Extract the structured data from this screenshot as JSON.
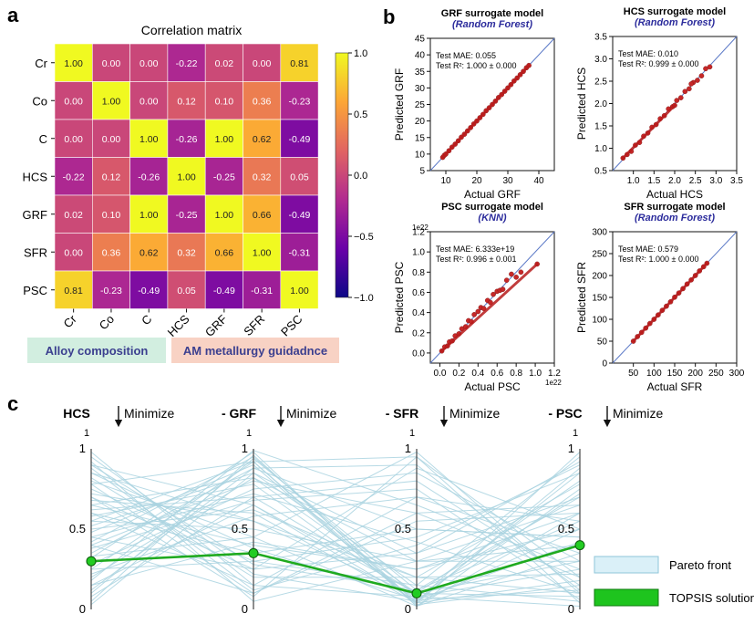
{
  "panel_letters": {
    "a": "a",
    "b": "b",
    "c": "c"
  },
  "panel_a": {
    "labels": {
      "alloy_composition": "Alloy composition",
      "am_metallurgy": "AM metallurgy guidadnce"
    },
    "colors": {
      "alloy_composition_bg": "#d2eee0",
      "am_metallurgy_bg": "#f8d2c4"
    }
  },
  "panel_b_text": {
    "grf": {
      "title": "GRF surrogate model",
      "model": "(Random Forest)",
      "mae_label": "Test MAE: 0.055",
      "r2_label": "Test R²: 1.000 ± 0.000"
    },
    "hcs": {
      "title": "HCS surrogate model",
      "model": "(Random Forest)",
      "mae_label": "Test MAE: 0.010",
      "r2_label": "Test R²: 0.999 ± 0.000"
    },
    "psc": {
      "title": "PSC surrogate model",
      "model": "(KNN)",
      "mae_label": "Test MAE: 6.333e+19",
      "r2_label": "Test R²: 0.996 ± 0.001",
      "sci_label": "1e22"
    },
    "sfr": {
      "title": "SFR surrogate model",
      "model": "(Random Forest)",
      "mae_label": "Test MAE: 0.579",
      "r2_label": "Test R²: 1.000 ± 0.000"
    }
  },
  "panel_c_text": {
    "axis_titles": [
      "HCS",
      "- GRF",
      "- SFR",
      "- PSC"
    ],
    "direction_label": "Minimize",
    "top_label": "1",
    "legend": [
      "Pareto front",
      "TOPSIS solution"
    ]
  },
  "chart_data": [
    {
      "id": "correlation_matrix",
      "type": "heatmap",
      "title": "Correlation matrix",
      "rows": [
        "Cr",
        "Co",
        "C",
        "HCS",
        "GRF",
        "SFR",
        "PSC"
      ],
      "columns": [
        "Cr",
        "Co",
        "C",
        "HCS",
        "GRF",
        "SFR",
        "PSC"
      ],
      "values": [
        [
          1.0,
          0.0,
          0.0,
          -0.22,
          0.02,
          0.0,
          0.81
        ],
        [
          0.0,
          1.0,
          0.0,
          0.12,
          0.1,
          0.36,
          -0.23
        ],
        [
          0.0,
          0.0,
          1.0,
          -0.26,
          1.0,
          0.62,
          -0.49
        ],
        [
          -0.22,
          0.12,
          -0.26,
          1.0,
          -0.25,
          0.32,
          0.05
        ],
        [
          0.02,
          0.1,
          1.0,
          -0.25,
          1.0,
          0.66,
          -0.49
        ],
        [
          0.0,
          0.36,
          0.62,
          0.32,
          0.66,
          1.0,
          -0.31
        ],
        [
          0.81,
          -0.23,
          -0.49,
          0.05,
          -0.49,
          -0.31,
          1.0
        ]
      ],
      "colorbar": {
        "range": [
          -1.0,
          1.0
        ],
        "ticks": [
          "1.0",
          "0.5",
          "0.0",
          "−0.5",
          "−1.0"
        ],
        "colormap": "plasma"
      }
    },
    {
      "id": "grf_parity",
      "type": "scatter",
      "xlabel": "Actual GRF",
      "ylabel": "Predicted GRF",
      "xlim": [
        5,
        45
      ],
      "ylim": [
        5,
        45
      ],
      "xticks": [
        "10",
        "20",
        "30",
        "40"
      ],
      "yticks": [
        "5",
        "10",
        "15",
        "20",
        "25",
        "30",
        "35",
        "40",
        "45"
      ],
      "points": [
        [
          9,
          9
        ],
        [
          9.5,
          9.6
        ],
        [
          10,
          10
        ],
        [
          11,
          11
        ],
        [
          12,
          12.1
        ],
        [
          13,
          13
        ],
        [
          14,
          14
        ],
        [
          15,
          15.1
        ],
        [
          16,
          16
        ],
        [
          17,
          17
        ],
        [
          18,
          18
        ],
        [
          19,
          19.1
        ],
        [
          20,
          20
        ],
        [
          21,
          21
        ],
        [
          22,
          22
        ],
        [
          23,
          23.1
        ],
        [
          24,
          24
        ],
        [
          25,
          25
        ],
        [
          26,
          26
        ],
        [
          27,
          27.1
        ],
        [
          28,
          28
        ],
        [
          29,
          29
        ],
        [
          30,
          30
        ],
        [
          31,
          31
        ],
        [
          32,
          32.1
        ],
        [
          33,
          33
        ],
        [
          34,
          34
        ],
        [
          35,
          35
        ],
        [
          36,
          36.1
        ],
        [
          36.8,
          36.8
        ]
      ]
    },
    {
      "id": "hcs_parity",
      "type": "scatter",
      "xlabel": "Actual HCS",
      "ylabel": "Predicted HCS",
      "xlim": [
        0.5,
        3.5
      ],
      "ylim": [
        0.5,
        3.5
      ],
      "xticks": [
        "1.0",
        "1.5",
        "2.0",
        "2.5",
        "3.0",
        "3.5"
      ],
      "yticks": [
        "0.5",
        "1.0",
        "1.5",
        "2.0",
        "2.5",
        "3.0",
        "3.5"
      ],
      "points": [
        [
          0.75,
          0.78
        ],
        [
          0.85,
          0.86
        ],
        [
          0.95,
          0.93
        ],
        [
          1.05,
          1.07
        ],
        [
          1.15,
          1.13
        ],
        [
          1.25,
          1.27
        ],
        [
          1.35,
          1.34
        ],
        [
          1.45,
          1.47
        ],
        [
          1.55,
          1.53
        ],
        [
          1.65,
          1.66
        ],
        [
          1.75,
          1.73
        ],
        [
          1.85,
          1.88
        ],
        [
          1.95,
          1.93
        ],
        [
          2.05,
          2.07
        ],
        [
          2.15,
          2.13
        ],
        [
          2.25,
          2.27
        ],
        [
          2.35,
          2.33
        ],
        [
          2.45,
          2.47
        ],
        [
          2.55,
          2.52
        ],
        [
          2.65,
          2.62
        ],
        [
          2.75,
          2.78
        ],
        [
          2.85,
          2.82
        ],
        [
          2.4,
          2.44
        ],
        [
          2.0,
          1.96
        ]
      ]
    },
    {
      "id": "psc_parity",
      "type": "scatter",
      "xlabel": "Actual PSC",
      "ylabel": "Predicted PSC",
      "xlim": [
        -0.1,
        1.2
      ],
      "ylim": [
        -0.1,
        1.2
      ],
      "xticks": [
        "0.0",
        "0.2",
        "0.4",
        "0.6",
        "0.8",
        "1.0",
        "1.2"
      ],
      "yticks": [
        "0.0",
        "0.2",
        "0.4",
        "0.6",
        "0.8",
        "1.0",
        "1.2"
      ],
      "points": [
        [
          0.02,
          0.02
        ],
        [
          0.05,
          0.06
        ],
        [
          0.08,
          0.07
        ],
        [
          0.1,
          0.11
        ],
        [
          0.13,
          0.12
        ],
        [
          0.16,
          0.17
        ],
        [
          0.2,
          0.19
        ],
        [
          0.23,
          0.24
        ],
        [
          0.27,
          0.26
        ],
        [
          0.3,
          0.32
        ],
        [
          0.33,
          0.31
        ],
        [
          0.36,
          0.38
        ],
        [
          0.4,
          0.41
        ],
        [
          0.43,
          0.45
        ],
        [
          0.46,
          0.44
        ],
        [
          0.5,
          0.52
        ],
        [
          0.53,
          0.5
        ],
        [
          0.56,
          0.58
        ],
        [
          0.6,
          0.61
        ],
        [
          0.63,
          0.62
        ],
        [
          0.66,
          0.63
        ],
        [
          0.7,
          0.72
        ],
        [
          0.75,
          0.78
        ],
        [
          0.8,
          0.75
        ],
        [
          0.85,
          0.8
        ],
        [
          1.02,
          0.88
        ]
      ]
    },
    {
      "id": "sfr_parity",
      "type": "scatter",
      "xlabel": "Actual SFR",
      "ylabel": "Predicted SFR",
      "xlim": [
        0,
        300
      ],
      "ylim": [
        0,
        300
      ],
      "xticks": [
        "50",
        "100",
        "150",
        "200",
        "250",
        "300"
      ],
      "yticks": [
        "0",
        "50",
        "100",
        "150",
        "200",
        "250",
        "300"
      ],
      "points": [
        [
          50,
          50
        ],
        [
          60,
          60.5
        ],
        [
          70,
          70
        ],
        [
          80,
          80
        ],
        [
          90,
          90.5
        ],
        [
          100,
          100
        ],
        [
          110,
          110
        ],
        [
          120,
          120.5
        ],
        [
          130,
          130
        ],
        [
          140,
          140
        ],
        [
          150,
          150.5
        ],
        [
          160,
          160
        ],
        [
          170,
          170
        ],
        [
          180,
          180.5
        ],
        [
          190,
          190
        ],
        [
          200,
          200
        ],
        [
          210,
          210.5
        ],
        [
          220,
          220
        ],
        [
          228,
          228
        ]
      ]
    },
    {
      "id": "parallel_coordinates",
      "type": "line",
      "axes": [
        "HCS",
        "- GRF",
        "- SFR",
        "- PSC"
      ],
      "ylim": [
        0,
        1
      ],
      "yticks": [
        "0",
        "0.5",
        "1"
      ],
      "series": [
        {
          "name": "TOPSIS solution",
          "values": [
            0.3,
            0.35,
            0.1,
            0.4
          ]
        }
      ],
      "pareto_front": [
        [
          0.98,
          0.15,
          0.08,
          0.72
        ],
        [
          0.95,
          0.22,
          0.05,
          0.85
        ],
        [
          0.92,
          0.05,
          0.3,
          0.65
        ],
        [
          0.9,
          0.28,
          0.12,
          0.55
        ],
        [
          0.88,
          0.12,
          0.4,
          0.9
        ],
        [
          0.85,
          0.38,
          0.06,
          0.42
        ],
        [
          0.82,
          0.2,
          0.2,
          0.78
        ],
        [
          0.8,
          0.45,
          0.02,
          0.35
        ],
        [
          0.78,
          0.1,
          0.55,
          0.6
        ],
        [
          0.75,
          0.3,
          0.15,
          0.95
        ],
        [
          0.72,
          0.55,
          0.08,
          0.25
        ],
        [
          0.7,
          0.25,
          0.35,
          0.7
        ],
        [
          0.68,
          0.6,
          0.04,
          0.18
        ],
        [
          0.65,
          0.4,
          0.25,
          0.5
        ],
        [
          0.62,
          0.7,
          0.1,
          0.08
        ],
        [
          0.6,
          0.35,
          0.5,
          0.45
        ],
        [
          0.58,
          0.78,
          0.06,
          0.12
        ],
        [
          0.55,
          0.5,
          0.3,
          0.3
        ],
        [
          0.52,
          0.85,
          0.15,
          0.05
        ],
        [
          0.5,
          0.62,
          0.2,
          0.22
        ],
        [
          0.48,
          0.9,
          0.03,
          0.15
        ],
        [
          0.45,
          0.72,
          0.42,
          0.1
        ],
        [
          0.42,
          0.95,
          0.08,
          0.02
        ],
        [
          0.4,
          0.8,
          0.6,
          0.2
        ],
        [
          0.38,
          0.68,
          0.75,
          0.06
        ],
        [
          0.35,
          0.88,
          0.9,
          0.12
        ],
        [
          0.32,
          0.98,
          0.02,
          0.6
        ],
        [
          0.28,
          0.75,
          0.85,
          0.3
        ],
        [
          0.25,
          0.92,
          0.95,
          0.04
        ],
        [
          0.22,
          0.58,
          0.7,
          0.55
        ],
        [
          0.2,
          0.82,
          0.1,
          0.8
        ],
        [
          0.18,
          0.99,
          0.65,
          0.25
        ],
        [
          0.15,
          0.65,
          0.05,
          0.98
        ],
        [
          0.12,
          0.88,
          0.5,
          0.45
        ],
        [
          0.1,
          0.94,
          0.12,
          0.7
        ],
        [
          0.08,
          0.7,
          0.8,
          0.15
        ],
        [
          0.05,
          0.96,
          0.04,
          0.88
        ],
        [
          0.03,
          0.85,
          0.35,
          0.92
        ],
        [
          0.6,
          0.15,
          0.7,
          0.35
        ],
        [
          0.45,
          0.25,
          0.88,
          0.5
        ],
        [
          0.7,
          0.08,
          0.95,
          0.2
        ],
        [
          0.33,
          0.45,
          0.98,
          0.1
        ],
        [
          0.55,
          0.92,
          0.02,
          0.75
        ],
        [
          0.85,
          0.55,
          0.2,
          0.1
        ],
        [
          0.25,
          0.3,
          0.45,
          0.85
        ],
        [
          0.65,
          0.82,
          0.3,
          0.4
        ],
        [
          0.4,
          0.1,
          0.6,
          0.65
        ],
        [
          0.9,
          0.65,
          0.1,
          0.3
        ],
        [
          0.15,
          0.42,
          0.25,
          0.6
        ],
        [
          0.78,
          0.92,
          0.04,
          0.5
        ]
      ]
    }
  ]
}
